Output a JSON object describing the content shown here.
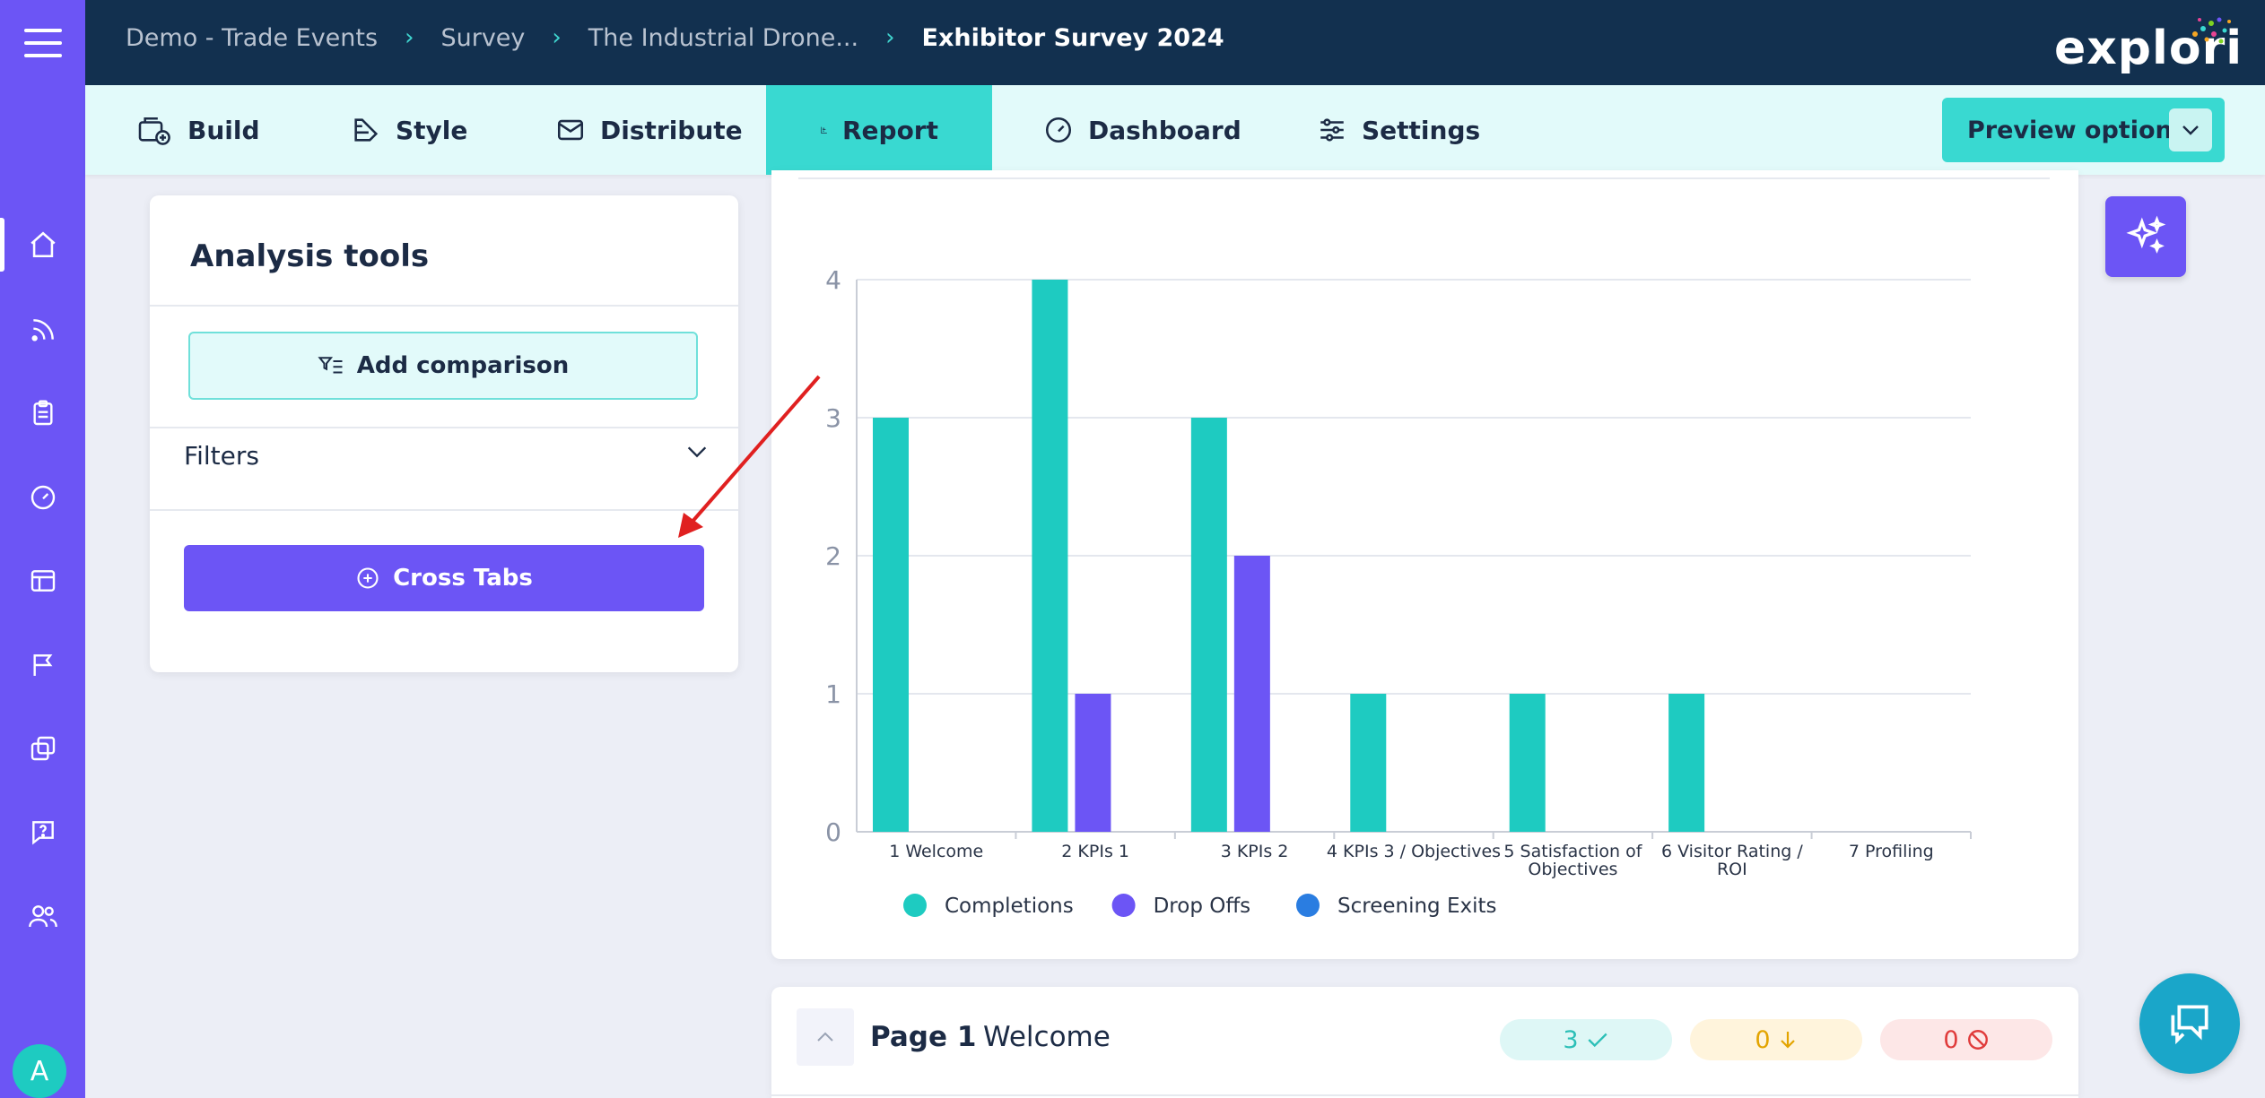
{
  "topbar": {
    "breadcrumbs": [
      "Demo - Trade Events",
      "Survey",
      "The Industrial Drone...",
      "Exhibitor Survey 2024"
    ],
    "logo_text": "explori"
  },
  "sidebar": {
    "icons": [
      "home-icon",
      "feed-icon",
      "clipboard-icon",
      "gauge-icon",
      "layout-icon",
      "flag-icon",
      "copy-icon",
      "help-icon",
      "users-icon"
    ],
    "avatar_letter": "A"
  },
  "tabs": {
    "build": "Build",
    "style": "Style",
    "distribute": "Distribute",
    "report": "Report",
    "dashboard": "Dashboard",
    "settings": "Settings",
    "active": "Report"
  },
  "preview_options": "Preview options",
  "analysis": {
    "title": "Analysis tools",
    "add_comparison": "Add comparison",
    "filters": "Filters",
    "cross_tabs": "Cross Tabs"
  },
  "chart_data": {
    "type": "bar",
    "categories": [
      [
        "1 Welcome"
      ],
      [
        "2 KPIs 1"
      ],
      [
        "3 KPIs 2"
      ],
      [
        "4 KPIs 3 / Objectives"
      ],
      [
        "5 Satisfaction of",
        "Objectives"
      ],
      [
        "6 Visitor Rating /",
        "ROI"
      ],
      [
        "7 Profiling"
      ]
    ],
    "series": [
      {
        "name": "Completions",
        "color": "#1ecbc1",
        "values": [
          3,
          4,
          3,
          1,
          1,
          1,
          0
        ]
      },
      {
        "name": "Drop Offs",
        "color": "#6c55f5",
        "values": [
          0,
          1,
          2,
          0,
          0,
          0,
          0
        ]
      },
      {
        "name": "Screening Exits",
        "color": "#2a7de1",
        "values": [
          0,
          0,
          0,
          0,
          0,
          0,
          0
        ]
      }
    ],
    "yticks": [
      0,
      1,
      2,
      3,
      4
    ],
    "ylim": [
      0,
      4
    ],
    "grid": true,
    "legend_position": "bottom-left"
  },
  "page_row": {
    "number": "Page 1",
    "name": "Welcome",
    "completions": "3",
    "drop_offs": "0",
    "screening_exits": "0"
  },
  "colors": {
    "accent_purple": "#6c55f5",
    "accent_teal": "#39d9d1",
    "navy": "#12304f",
    "annotation_red": "#e02020"
  }
}
